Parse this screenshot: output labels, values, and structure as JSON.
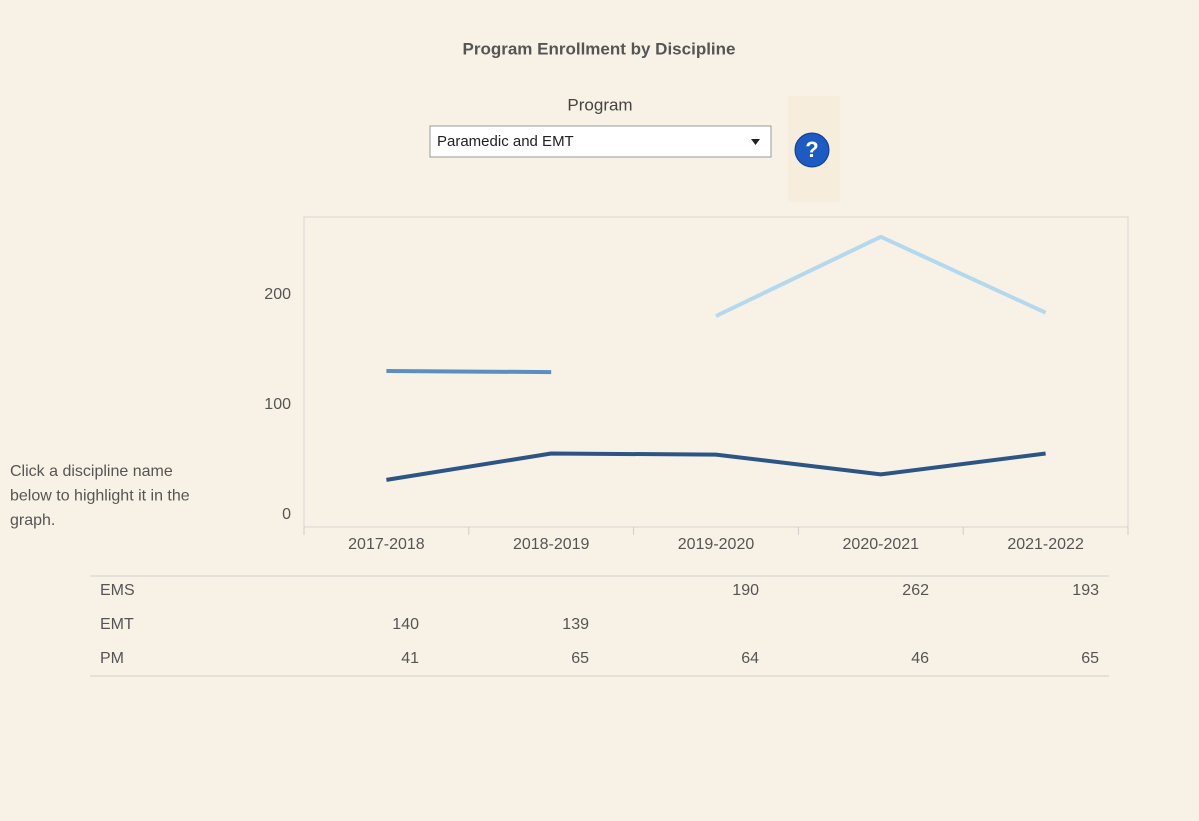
{
  "title": "Program Enrollment by Discipline",
  "filter": {
    "label": "Program",
    "selected": "Paramedic and EMT"
  },
  "help_icon": "?",
  "note": [
    "Click a discipline name",
    "below to highlight it in the",
    "graph."
  ],
  "chart_data": {
    "type": "line",
    "categories": [
      "2017-2018",
      "2018-2019",
      "2019-2020",
      "2020-2021",
      "2021-2022"
    ],
    "series": [
      {
        "name": "EMS",
        "color": "#b4d9ef",
        "values": [
          null,
          null,
          190,
          262,
          193
        ]
      },
      {
        "name": "EMT",
        "color": "#5b8fc0",
        "values": [
          140,
          139,
          null,
          null,
          null
        ]
      },
      {
        "name": "PM",
        "color": "#2c5585",
        "values": [
          41,
          65,
          64,
          46,
          65
        ]
      }
    ],
    "ylim": [
      0,
      280
    ],
    "yticks": [
      0,
      100,
      200
    ],
    "grid": false
  }
}
